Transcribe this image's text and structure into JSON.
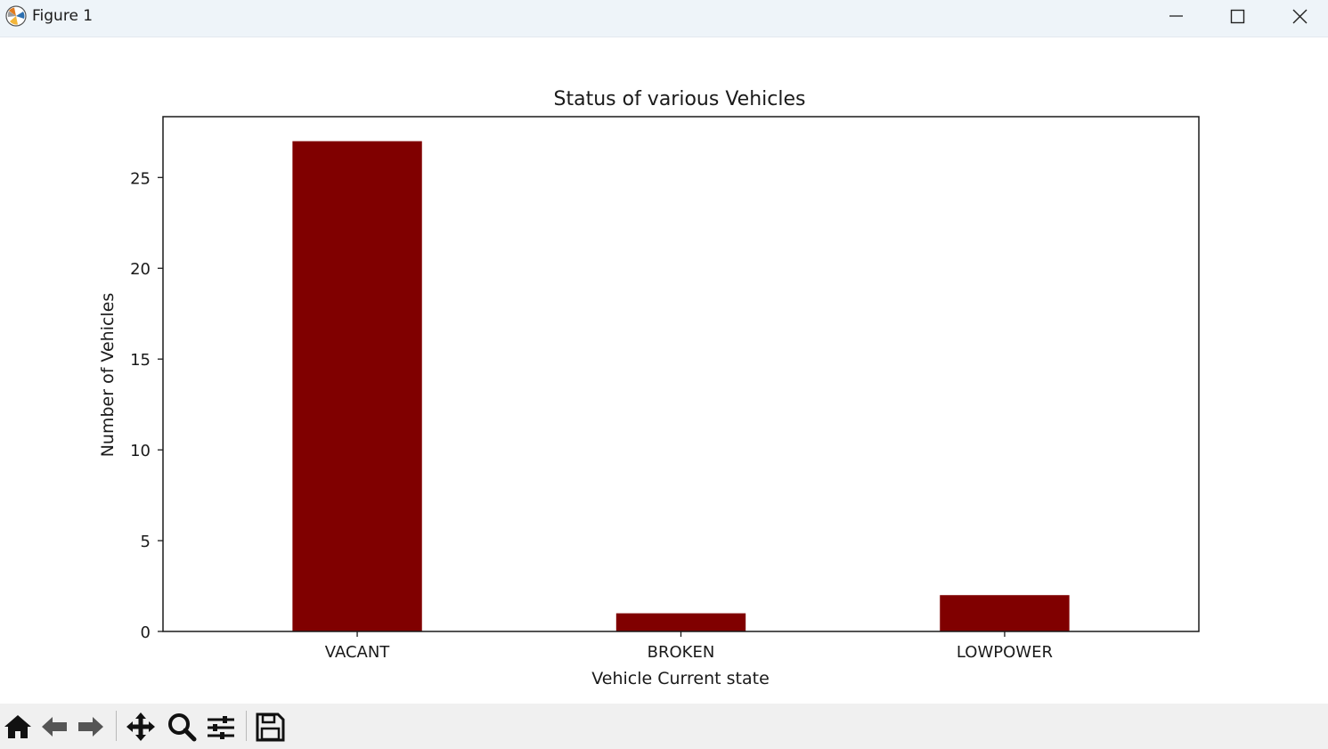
{
  "window": {
    "title": "Figure 1",
    "app_icon": "matplotlib-logo-icon",
    "controls": [
      "minimize-icon",
      "maximize-icon",
      "close-icon"
    ]
  },
  "toolbar": {
    "buttons": [
      "home-icon",
      "back-arrow-icon",
      "forward-arrow-icon",
      "pan-move-icon",
      "zoom-magnifier-icon",
      "configure-subplots-icon",
      "save-floppy-icon"
    ]
  },
  "chart_data": {
    "type": "bar",
    "title": "Status of various Vehicles",
    "xlabel": "Vehicle Current state",
    "ylabel": "Number of Vehicles",
    "categories": [
      "VACANT",
      "BROKEN",
      "LOWPOWER"
    ],
    "values": [
      27,
      1,
      2
    ],
    "ylim": [
      0,
      28.35
    ],
    "yticks": [
      0,
      5,
      10,
      15,
      20,
      25
    ],
    "bar_color": "#800000",
    "grid": false,
    "legend": "none"
  }
}
